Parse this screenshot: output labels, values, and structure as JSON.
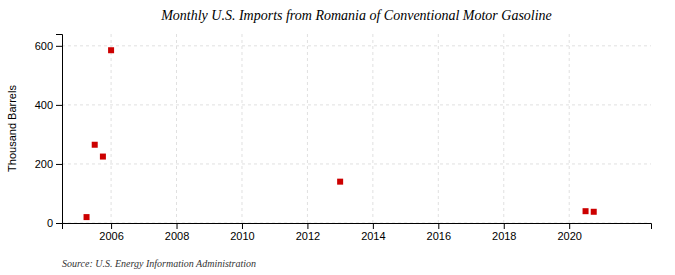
{
  "chart_data": {
    "type": "scatter",
    "title": "Monthly U.S. Imports from Romania of Conventional Motor Gasoline",
    "ylabel": "Thousand Barrels",
    "source": "Source: U.S. Energy Information Administration",
    "x": [
      2005.25,
      2005.5,
      2005.75,
      2006.0,
      2013.0,
      2020.5,
      2020.75
    ],
    "values": [
      20,
      265,
      225,
      585,
      140,
      40,
      38
    ],
    "color": "#cc0000",
    "marker": "square",
    "xlim": [
      2004.5,
      2022.5
    ],
    "ylim": [
      0,
      640
    ],
    "xticks": [
      2006,
      2008,
      2010,
      2012,
      2014,
      2016,
      2018,
      2020
    ],
    "yticks": [
      0,
      200,
      400,
      600
    ],
    "grid": true
  }
}
